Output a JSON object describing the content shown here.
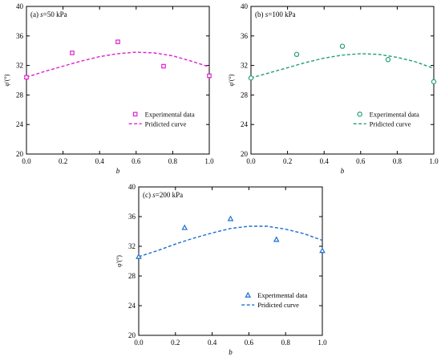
{
  "chart_data": [
    {
      "type": "scatter",
      "panel_label": "(a) ",
      "panel_italic": "s",
      "panel_value": "=50 kPa",
      "xlabel": "b",
      "ylabel": "φ′(°)",
      "xlim": [
        0,
        1.0
      ],
      "ylim": [
        20,
        40
      ],
      "xticks": [
        "0.0",
        "0.2",
        "0.4",
        "0.6",
        "0.8",
        "1.0"
      ],
      "yticks": [
        "20",
        "24",
        "28",
        "32",
        "36",
        "40"
      ],
      "legend_position": "lower-right",
      "color": "#e020d0",
      "marker": "square",
      "series": [
        {
          "name": "Experimental data",
          "kind": "points",
          "x": [
            0.0,
            0.25,
            0.5,
            0.75,
            1.0
          ],
          "y": [
            30.4,
            33.7,
            35.2,
            31.9,
            30.6
          ]
        },
        {
          "name": "Pridicted curve",
          "kind": "curve",
          "x": [
            0.0,
            0.1,
            0.2,
            0.3,
            0.4,
            0.5,
            0.6,
            0.7,
            0.8,
            0.9,
            1.0
          ],
          "y": [
            30.4,
            31.2,
            31.9,
            32.6,
            33.2,
            33.6,
            33.8,
            33.7,
            33.3,
            32.6,
            31.8
          ]
        }
      ]
    },
    {
      "type": "scatter",
      "panel_label": "(b) ",
      "panel_italic": "s",
      "panel_value": "=100 kPa",
      "xlabel": "b",
      "ylabel": "φ′(°)",
      "xlim": [
        0,
        1.0
      ],
      "ylim": [
        20,
        40
      ],
      "xticks": [
        "0.0",
        "0.2",
        "0.4",
        "0.6",
        "0.8",
        "1.0"
      ],
      "yticks": [
        "20",
        "24",
        "28",
        "32",
        "36",
        "40"
      ],
      "legend_position": "lower-right",
      "color": "#22a070",
      "marker": "circle",
      "series": [
        {
          "name": "Experimental data",
          "kind": "points",
          "x": [
            0.0,
            0.25,
            0.5,
            0.75,
            1.0
          ],
          "y": [
            30.3,
            33.5,
            34.6,
            32.8,
            29.8
          ]
        },
        {
          "name": "Pridicted curve",
          "kind": "curve",
          "x": [
            0.0,
            0.1,
            0.2,
            0.3,
            0.4,
            0.5,
            0.6,
            0.7,
            0.8,
            0.9,
            1.0
          ],
          "y": [
            30.3,
            31.0,
            31.7,
            32.4,
            33.0,
            33.4,
            33.6,
            33.5,
            33.1,
            32.5,
            31.6
          ]
        }
      ]
    },
    {
      "type": "scatter",
      "panel_label": "(c) ",
      "panel_italic": "s",
      "panel_value": "=200 kPa",
      "xlabel": "b",
      "ylabel": "φ′(°)",
      "xlim": [
        0,
        1.0
      ],
      "ylim": [
        20,
        40
      ],
      "xticks": [
        "0.0",
        "0.2",
        "0.4",
        "0.6",
        "0.8",
        "1.0"
      ],
      "yticks": [
        "20",
        "24",
        "28",
        "32",
        "36",
        "40"
      ],
      "legend_position": "lower-right",
      "color": "#1a6fd0",
      "marker": "triangle",
      "series": [
        {
          "name": "Experimental data",
          "kind": "points",
          "x": [
            0.0,
            0.25,
            0.5,
            0.75,
            1.0
          ],
          "y": [
            30.6,
            34.5,
            35.7,
            32.9,
            31.4
          ]
        },
        {
          "name": "Pridicted curve",
          "kind": "curve",
          "x": [
            0.0,
            0.1,
            0.2,
            0.3,
            0.4,
            0.5,
            0.6,
            0.7,
            0.8,
            0.9,
            1.0
          ],
          "y": [
            30.6,
            31.4,
            32.3,
            33.1,
            33.8,
            34.4,
            34.7,
            34.7,
            34.3,
            33.7,
            32.8
          ]
        }
      ]
    }
  ]
}
